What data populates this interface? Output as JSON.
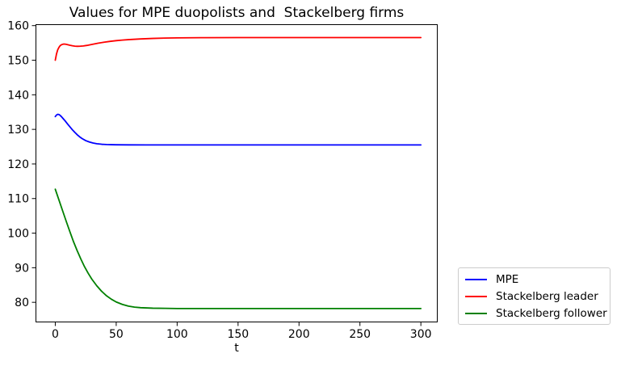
{
  "chart_data": {
    "type": "line",
    "title": "Values for MPE duopolists and  Stackelberg firms",
    "xlabel": "t",
    "ylabel": "",
    "xlim": [
      -16.2,
      313.8
    ],
    "ylim": [
      74.2,
      160.4
    ],
    "xticks": [
      0,
      50,
      100,
      150,
      200,
      250,
      300
    ],
    "yticks": [
      80,
      90,
      100,
      110,
      120,
      130,
      140,
      150,
      160
    ],
    "grid": false,
    "legend_position": "outside-lower-right",
    "series": [
      {
        "name": "MPE",
        "color": "#0000ff",
        "points": [
          [
            0,
            133.7
          ],
          [
            1,
            134.15
          ],
          [
            2,
            134.35
          ],
          [
            3,
            134.3
          ],
          [
            4,
            134.05
          ],
          [
            5,
            133.7
          ],
          [
            6,
            133.3
          ],
          [
            7,
            132.9
          ],
          [
            8,
            132.5
          ],
          [
            10,
            131.6
          ],
          [
            12,
            130.75
          ],
          [
            14,
            129.9
          ],
          [
            16,
            129.15
          ],
          [
            18,
            128.45
          ],
          [
            20,
            127.85
          ],
          [
            22,
            127.35
          ],
          [
            25,
            126.75
          ],
          [
            28,
            126.35
          ],
          [
            31,
            126.05
          ],
          [
            34,
            125.85
          ],
          [
            38,
            125.7
          ],
          [
            42,
            125.62
          ],
          [
            46,
            125.58
          ],
          [
            50,
            125.55
          ],
          [
            60,
            125.52
          ],
          [
            75,
            125.5
          ],
          [
            100,
            125.5
          ],
          [
            150,
            125.5
          ],
          [
            200,
            125.5
          ],
          [
            250,
            125.5
          ],
          [
            300,
            125.5
          ]
        ]
      },
      {
        "name": "Stackelberg leader",
        "color": "#ff0000",
        "points": [
          [
            0,
            150.0
          ],
          [
            1,
            151.8
          ],
          [
            2,
            153.0
          ],
          [
            3,
            153.7
          ],
          [
            4,
            154.2
          ],
          [
            5,
            154.45
          ],
          [
            6,
            154.6
          ],
          [
            7,
            154.67
          ],
          [
            8,
            154.65
          ],
          [
            9,
            154.58
          ],
          [
            10,
            154.5
          ],
          [
            12,
            154.32
          ],
          [
            14,
            154.17
          ],
          [
            16,
            154.07
          ],
          [
            18,
            154.02
          ],
          [
            20,
            154.03
          ],
          [
            23,
            154.12
          ],
          [
            26,
            154.28
          ],
          [
            30,
            154.55
          ],
          [
            35,
            154.9
          ],
          [
            40,
            155.2
          ],
          [
            45,
            155.45
          ],
          [
            50,
            155.65
          ],
          [
            55,
            155.82
          ],
          [
            60,
            155.95
          ],
          [
            70,
            156.15
          ],
          [
            80,
            156.3
          ],
          [
            90,
            156.4
          ],
          [
            100,
            156.45
          ],
          [
            120,
            156.52
          ],
          [
            150,
            156.55
          ],
          [
            200,
            156.55
          ],
          [
            250,
            156.55
          ],
          [
            300,
            156.55
          ]
        ]
      },
      {
        "name": "Stackelberg follower",
        "color": "#008000",
        "points": [
          [
            0,
            112.7
          ],
          [
            3,
            109.6
          ],
          [
            6,
            106.5
          ],
          [
            9,
            103.4
          ],
          [
            12,
            100.4
          ],
          [
            15,
            97.5
          ],
          [
            18,
            94.9
          ],
          [
            21,
            92.5
          ],
          [
            24,
            90.3
          ],
          [
            27,
            88.4
          ],
          [
            30,
            86.7
          ],
          [
            34,
            84.8
          ],
          [
            38,
            83.2
          ],
          [
            42,
            81.9
          ],
          [
            46,
            80.9
          ],
          [
            50,
            80.1
          ],
          [
            55,
            79.4
          ],
          [
            60,
            78.9
          ],
          [
            65,
            78.6
          ],
          [
            70,
            78.45
          ],
          [
            80,
            78.3
          ],
          [
            90,
            78.25
          ],
          [
            100,
            78.2
          ],
          [
            150,
            78.2
          ],
          [
            200,
            78.2
          ],
          [
            250,
            78.2
          ],
          [
            300,
            78.2
          ]
        ]
      }
    ]
  }
}
